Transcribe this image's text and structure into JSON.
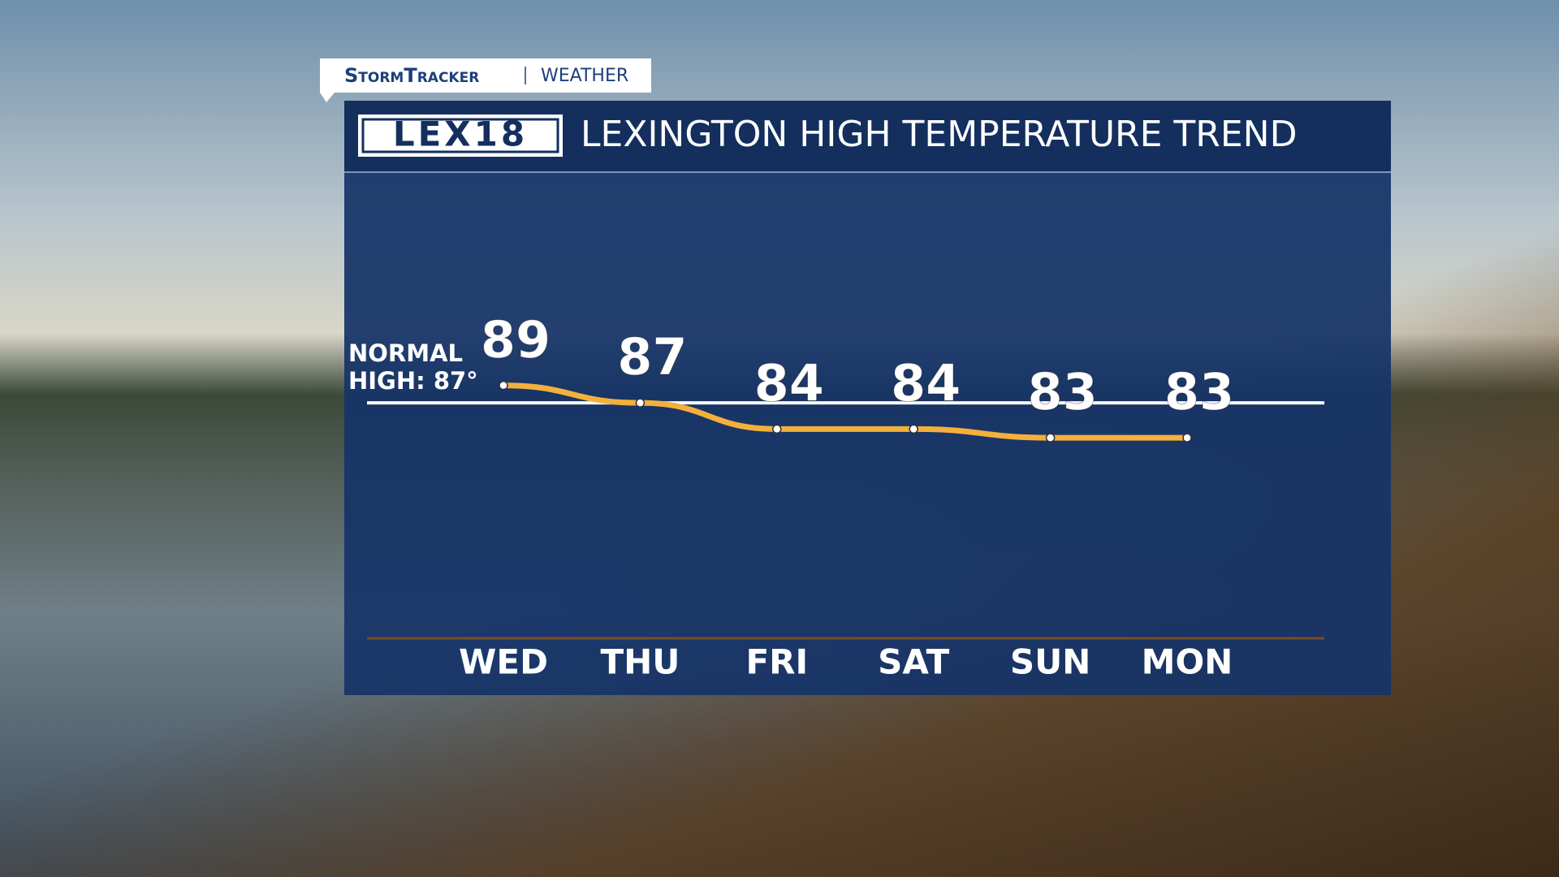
{
  "header": {
    "brand": "StormTracker",
    "section": "WEATHER",
    "logo": "LEX18"
  },
  "chart_data": {
    "type": "line",
    "title": "LEXINGTON HIGH TEMPERATURE TREND",
    "categories": [
      "WED",
      "THU",
      "FRI",
      "SAT",
      "SUN",
      "MON"
    ],
    "values": [
      89,
      87,
      84,
      84,
      83,
      83
    ],
    "color": "#f4b03c",
    "ylim": [
      60,
      113
    ],
    "reference_line": {
      "value": 87,
      "label": [
        "NORMAL",
        "HIGH: 87°"
      ]
    }
  }
}
